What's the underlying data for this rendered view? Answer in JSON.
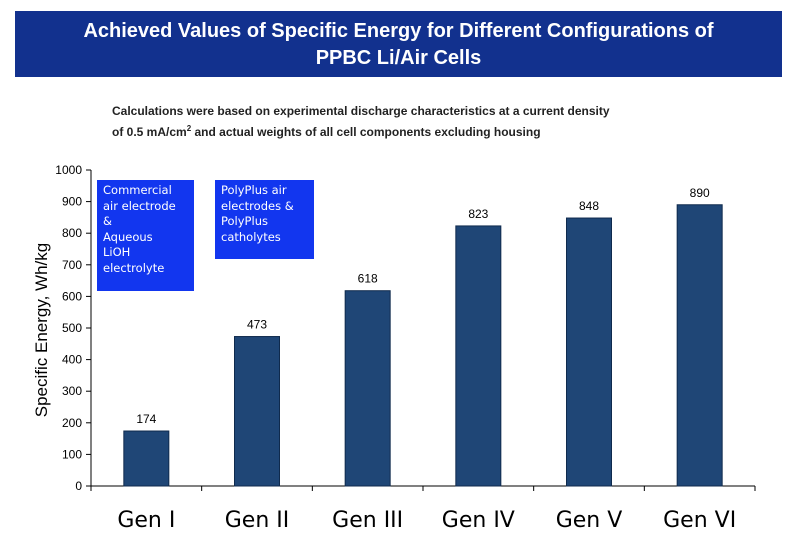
{
  "title": {
    "line1": "Achieved Values of Specific Energy for Different Configurations of",
    "line2": "PPBC Li/Air Cells"
  },
  "subtitle": {
    "line1": "Calculations were based on experimental discharge characteristics at a current density",
    "line2_prefix": "of 0.5 mA/cm",
    "line2_sup": "2",
    "line2_suffix": " and actual weights of all cell components excluding housing"
  },
  "notes": {
    "commercial": [
      "Commercial",
      "air electrode",
      "&",
      "Aqueous",
      "LiOH",
      "electrolyte"
    ],
    "polyplus": [
      "PolyPlus air",
      "electrodes &",
      "PolyPlus",
      "catholytes"
    ]
  },
  "colors": {
    "title_bg": "#12318e",
    "bar": "#1f4676",
    "note_bg": "#1236ef"
  },
  "chart_data": {
    "type": "bar",
    "categories": [
      "Gen I",
      "Gen II",
      "Gen III",
      "Gen IV",
      "Gen V",
      "Gen VI"
    ],
    "values": [
      174,
      473,
      618,
      823,
      848,
      890
    ],
    "data_labels": [
      "174",
      "473",
      "618",
      "823",
      "848",
      "890"
    ],
    "ylabel": "Specific Energy, Wh/kg",
    "xlabel": "",
    "ylim": [
      0,
      1000
    ],
    "yticks": [
      0,
      100,
      200,
      300,
      400,
      500,
      600,
      700,
      800,
      900,
      1000
    ],
    "grid": false
  }
}
